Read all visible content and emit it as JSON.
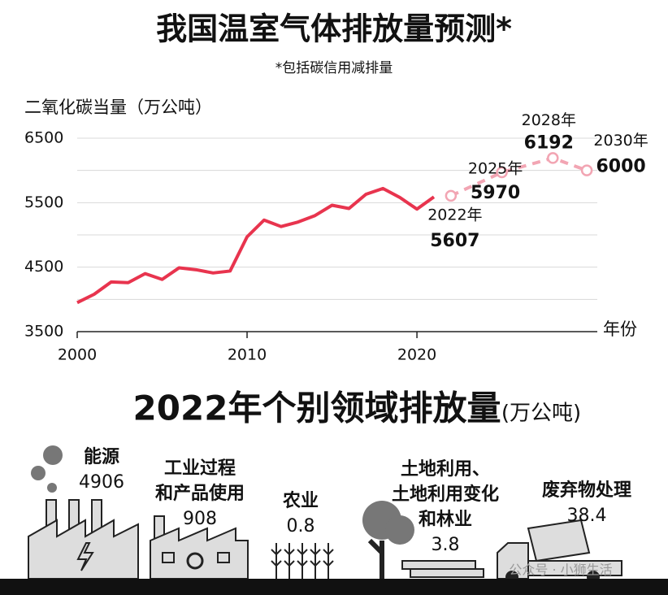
{
  "chart_data": {
    "type": "line",
    "title": "我国温室气体排放量预测*",
    "subtitle": "*包括碳信用减排量",
    "y_label": "二氧化碳当量（万公吨）",
    "x_label": "年份",
    "xlim": [
      2000,
      2031
    ],
    "xticks": [
      2000,
      2010,
      2020
    ],
    "ylim": [
      3500,
      6500
    ],
    "yticks": [
      3500,
      4500,
      5500,
      6500
    ],
    "grid_values": [
      3500,
      4000,
      4500,
      5000,
      5500,
      6000,
      6500
    ],
    "series": [
      {
        "color": "#e8344e",
        "dashed": false,
        "x": [
          2000,
          2001,
          2002,
          2003,
          2004,
          2005,
          2006,
          2007,
          2008,
          2009,
          2010,
          2011,
          2012,
          2013,
          2014,
          2015,
          2016,
          2017,
          2018,
          2019,
          2020,
          2021
        ],
        "values": [
          3950,
          4080,
          4270,
          4260,
          4400,
          4310,
          4490,
          4460,
          4410,
          4440,
          4970,
          5230,
          5130,
          5200,
          5300,
          5460,
          5410,
          5630,
          5720,
          5580,
          5400,
          5590
        ]
      },
      {
        "color": "#f2a5b3",
        "dashed": true,
        "x": [
          2022,
          2025,
          2028,
          2030
        ],
        "values": [
          5607,
          5970,
          6192,
          6000
        ],
        "point_labels": [
          "2022年",
          "2025年",
          "2028年",
          "2030年"
        ]
      }
    ]
  },
  "sectors": {
    "title": "2022年个别领域排放量",
    "unit": "(万公吨)",
    "items": [
      {
        "label_lines": [
          "能源"
        ],
        "value": 4906
      },
      {
        "label_lines": [
          "工业过程",
          "和产品使用"
        ],
        "value": 908
      },
      {
        "label_lines": [
          "农业"
        ],
        "value": 0.8
      },
      {
        "label_lines": [
          "土地利用、",
          "土地利用变化",
          "和林业"
        ],
        "value": 3.8
      },
      {
        "label_lines": [
          "废弃物处理"
        ],
        "value": 38.4
      }
    ]
  },
  "watermark": "公众号 · 小狮生活"
}
